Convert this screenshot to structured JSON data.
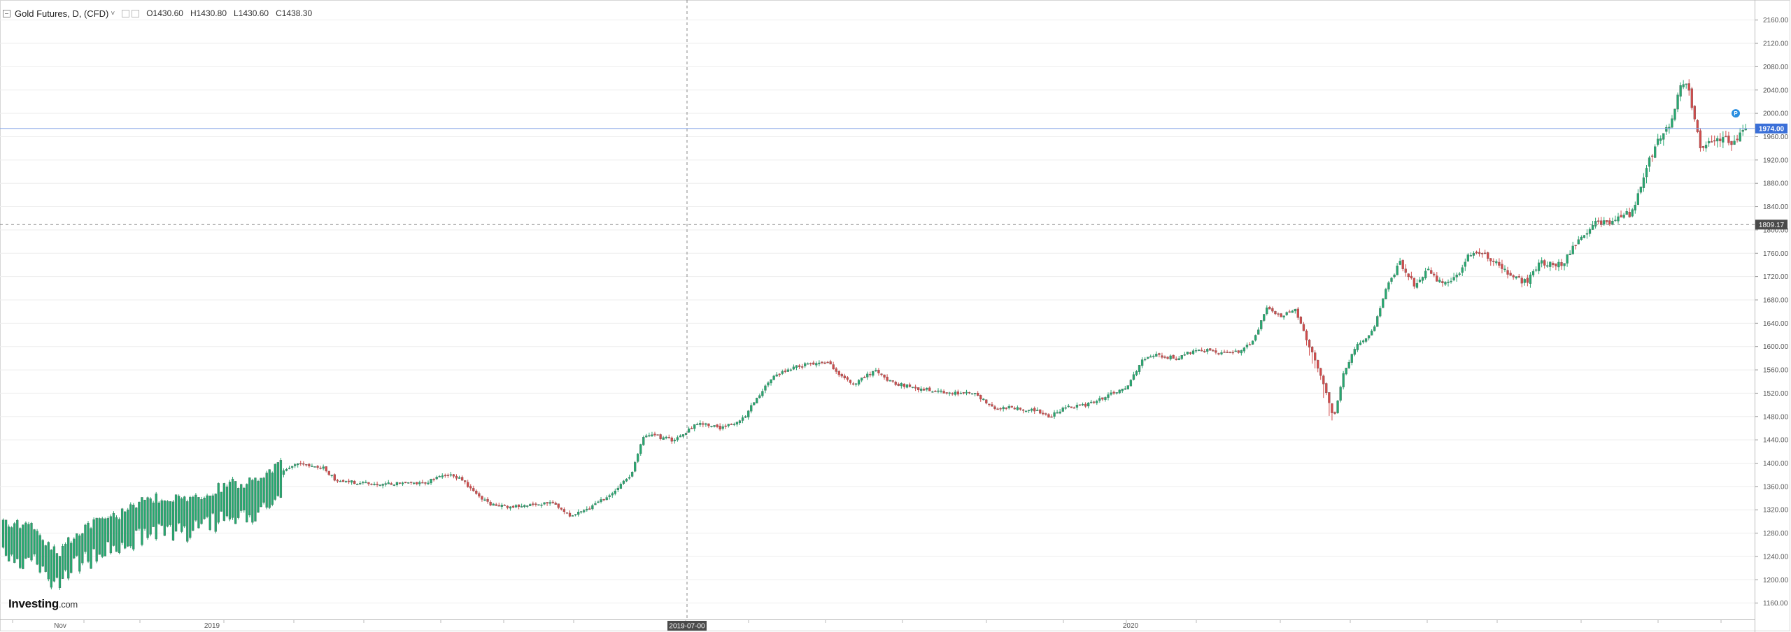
{
  "header": {
    "title": "Gold Futures, D, (CFD)",
    "caret": "˅",
    "ohlc": [
      {
        "k": "O",
        "v": "1430.60"
      },
      {
        "k": "H",
        "v": "1430.80"
      },
      {
        "k": "L",
        "v": "1430.60"
      },
      {
        "k": "C",
        "v": "1438.30"
      }
    ]
  },
  "logo": {
    "name": "Investing",
    "suffix": ".com"
  },
  "colors": {
    "up": "#26a870",
    "down": "#d24b4b",
    "grid": "#eeeeee",
    "axis": "#555555",
    "last_price_bg": "#3a6fd8",
    "crosshair_bg": "#4a4a4a"
  },
  "chart_data": {
    "type": "candlestick",
    "symbol": "Gold Futures, D, (CFD)",
    "y_ticks": [
      1160,
      1200,
      1240,
      1280,
      1320,
      1360,
      1400,
      1440,
      1480,
      1520,
      1560,
      1600,
      1640,
      1680,
      1720,
      1760,
      1800,
      1840,
      1880,
      1920,
      1960,
      2000,
      2040,
      2080,
      2120,
      2160
    ],
    "ylim": [
      1132,
      2192
    ],
    "x_labels": [
      "Nov",
      "2019",
      "2020"
    ],
    "last_price": "1974.00",
    "crosshair_price": "1809.17",
    "crosshair_date": "2019-07-00",
    "anchors": [
      [
        0,
        1280
      ],
      [
        50,
        1270
      ],
      [
        80,
        1225
      ],
      [
        110,
        1265
      ],
      [
        140,
        1280
      ],
      [
        180,
        1300
      ],
      [
        220,
        1325
      ],
      [
        260,
        1318
      ],
      [
        300,
        1335
      ],
      [
        330,
        1345
      ],
      [
        360,
        1350
      ],
      [
        390,
        1375
      ],
      [
        420,
        1400
      ],
      [
        460,
        1392
      ],
      [
        480,
        1370
      ],
      [
        520,
        1365
      ],
      [
        560,
        1365
      ],
      [
        600,
        1365
      ],
      [
        640,
        1380
      ],
      [
        660,
        1370
      ],
      [
        680,
        1345
      ],
      [
        700,
        1330
      ],
      [
        730,
        1325
      ],
      [
        760,
        1330
      ],
      [
        790,
        1330
      ],
      [
        810,
        1310
      ],
      [
        840,
        1320
      ],
      [
        880,
        1355
      ],
      [
        900,
        1380
      ],
      [
        920,
        1450
      ],
      [
        960,
        1440
      ],
      [
        1000,
        1470
      ],
      [
        1030,
        1460
      ],
      [
        1060,
        1475
      ],
      [
        1080,
        1510
      ],
      [
        1100,
        1545
      ],
      [
        1120,
        1560
      ],
      [
        1150,
        1570
      ],
      [
        1180,
        1575
      ],
      [
        1200,
        1550
      ],
      [
        1220,
        1535
      ],
      [
        1250,
        1560
      ],
      [
        1270,
        1540
      ],
      [
        1300,
        1530
      ],
      [
        1330,
        1525
      ],
      [
        1360,
        1520
      ],
      [
        1390,
        1520
      ],
      [
        1420,
        1495
      ],
      [
        1450,
        1495
      ],
      [
        1480,
        1490
      ],
      [
        1500,
        1480
      ],
      [
        1520,
        1495
      ],
      [
        1550,
        1500
      ],
      [
        1580,
        1515
      ],
      [
        1610,
        1530
      ],
      [
        1630,
        1575
      ],
      [
        1650,
        1585
      ],
      [
        1680,
        1580
      ],
      [
        1710,
        1595
      ],
      [
        1740,
        1590
      ],
      [
        1770,
        1590
      ],
      [
        1790,
        1610
      ],
      [
        1810,
        1670
      ],
      [
        1830,
        1650
      ],
      [
        1850,
        1665
      ],
      [
        1870,
        1600
      ],
      [
        1890,
        1540
      ],
      [
        1905,
        1475
      ],
      [
        1920,
        1560
      ],
      [
        1940,
        1605
      ],
      [
        1960,
        1625
      ],
      [
        1980,
        1700
      ],
      [
        2000,
        1745
      ],
      [
        2020,
        1705
      ],
      [
        2040,
        1730
      ],
      [
        2060,
        1705
      ],
      [
        2080,
        1720
      ],
      [
        2100,
        1760
      ],
      [
        2120,
        1760
      ],
      [
        2140,
        1740
      ],
      [
        2160,
        1720
      ],
      [
        2180,
        1710
      ],
      [
        2200,
        1745
      ],
      [
        2230,
        1740
      ],
      [
        2260,
        1790
      ],
      [
        2280,
        1815
      ],
      [
        2300,
        1810
      ],
      [
        2320,
        1830
      ],
      [
        2330,
        1825
      ],
      [
        2345,
        1880
      ],
      [
        2365,
        1950
      ],
      [
        2385,
        1980
      ],
      [
        2400,
        2040
      ],
      [
        2410,
        2060
      ],
      [
        2420,
        1990
      ],
      [
        2430,
        1935
      ],
      [
        2445,
        1950
      ],
      [
        2460,
        1960
      ],
      [
        2470,
        1950
      ],
      [
        2485,
        1960
      ],
      [
        2495,
        1970
      ]
    ]
  }
}
